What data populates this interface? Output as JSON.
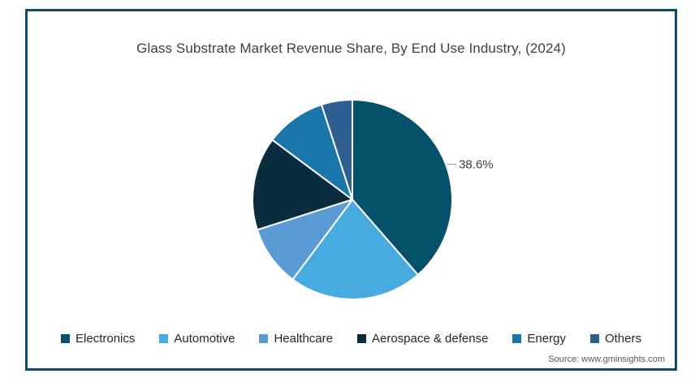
{
  "title": "Glass Substrate Market Revenue Share, By End Use Industry, (2024)",
  "source": "Source: www.gminsights.com",
  "frame": {
    "border_color": "#0f4a6b",
    "background": "#ffffff"
  },
  "chart_data": {
    "type": "pie",
    "title": "Glass Substrate Market Revenue Share, By End Use Industry, (2024)",
    "categories": [
      "Electronics",
      "Automotive",
      "Healthcare",
      "Aerospace & defense",
      "Energy",
      "Others"
    ],
    "values": [
      38.6,
      21.6,
      9.9,
      15.1,
      9.8,
      5.0
    ],
    "colors": [
      "#05506b",
      "#47abdf",
      "#5b9bd5",
      "#092d3f",
      "#1b76ab",
      "#2d5f92"
    ],
    "start_angle_deg": 0,
    "direction": "clockwise",
    "slice_border_color": "#ffffff",
    "labeled_slices": [
      {
        "index": 0,
        "text": "38.6%"
      }
    ],
    "label_color": "#404040",
    "leader_line_color": "#9a9a9a",
    "legend_position": "bottom"
  },
  "legend": {
    "items": [
      {
        "label": "Electronics"
      },
      {
        "label": "Automotive"
      },
      {
        "label": "Healthcare"
      },
      {
        "label": "Aerospace & defense"
      },
      {
        "label": "Energy"
      },
      {
        "label": "Others"
      }
    ]
  }
}
